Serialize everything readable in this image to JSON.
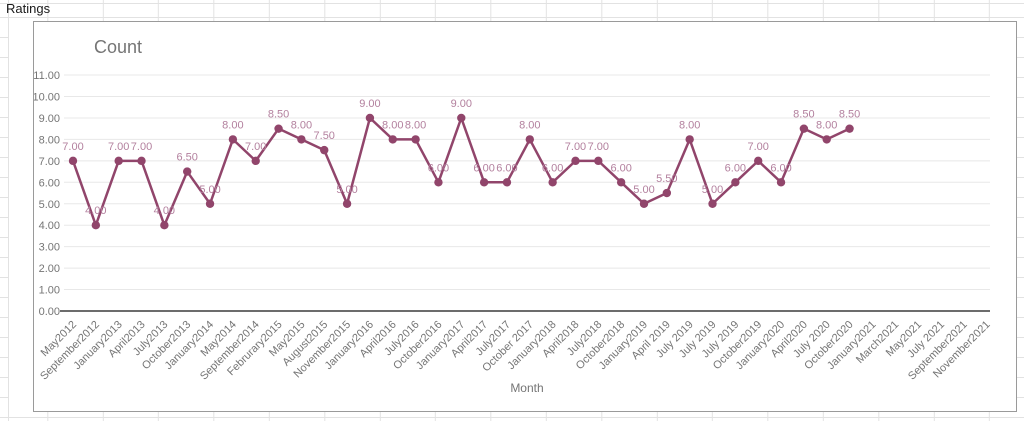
{
  "sheet": {
    "cell_a1": "Ratings"
  },
  "chart": {
    "title": "Count",
    "xlabel": "Month",
    "colors": {
      "line": "#91456b",
      "point": "#91456b",
      "data_label": "#b3809e",
      "axis_text": "#757575",
      "gridline": "#e8e8e8",
      "axis_line": "#3c3c3c",
      "panel_border": "#9a9a9a"
    }
  },
  "chart_data": {
    "type": "line",
    "title": "Count",
    "xlabel": "Month",
    "ylabel": "",
    "ylim": [
      0,
      11
    ],
    "ytick_step": 1,
    "grid": true,
    "legend": "none",
    "data_labels": true,
    "categories": [
      "May2012",
      "September2012",
      "January2013",
      "April2013",
      "July2013",
      "October2013",
      "January2014",
      "May2014",
      "September2014",
      "Februrary2015",
      "May2015",
      "August2015",
      "November2015",
      "January2016",
      "April2016",
      "July2016",
      "October2016",
      "January2017",
      "April2017",
      "July2017",
      "October 2017",
      "January2018",
      "April2018",
      "July2018",
      "October2018",
      "January2019",
      "April 2019",
      "July 2019",
      "July 2019",
      "July 2019",
      "October2019",
      "January2020",
      "April2020",
      "July 2020",
      "October2020",
      "January2021",
      "March2021",
      "May2021",
      "July 2021",
      "September2021",
      "November2021"
    ],
    "series": [
      {
        "name": "Count",
        "values": [
          7,
          4,
          7,
          7,
          4,
          6.5,
          5,
          8,
          7,
          8.5,
          8,
          7.5,
          5,
          9,
          8,
          8,
          6,
          9,
          6,
          6,
          8,
          6,
          7,
          7,
          6,
          5,
          5.5,
          8,
          5,
          6,
          7,
          6,
          8.5,
          8,
          8.5,
          null,
          null,
          null,
          null,
          null,
          null
        ]
      }
    ]
  }
}
